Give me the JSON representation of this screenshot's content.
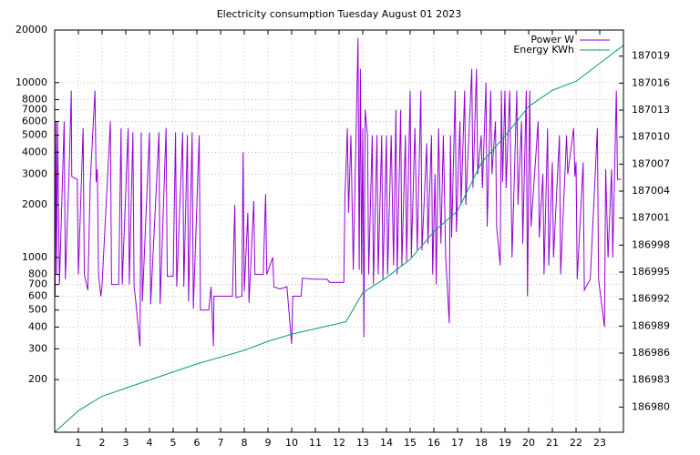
{
  "chart_data": {
    "type": "line",
    "title": "Electricity consumption Tuesday August 01 2023",
    "xlim": [
      0,
      24
    ],
    "xticks": [
      1,
      2,
      3,
      4,
      5,
      6,
      7,
      8,
      9,
      10,
      11,
      12,
      13,
      14,
      15,
      16,
      17,
      18,
      19,
      20,
      21,
      22,
      23
    ],
    "ylim": [
      100,
      20000
    ],
    "log_scale_y": true,
    "yticks": [
      200,
      300,
      400,
      500,
      600,
      700,
      800,
      1000,
      2000,
      3000,
      4000,
      5000,
      6000,
      7000,
      8000,
      10000,
      20000
    ],
    "y2lim": [
      186977.2,
      187021.9
    ],
    "y2ticks": [
      186980,
      186983,
      186986,
      186989,
      186992,
      186995,
      186998,
      187001,
      187004,
      187007,
      187010,
      187013,
      187016,
      187019
    ],
    "grid": true,
    "legend": "top-right",
    "series": [
      {
        "name": "Power W",
        "color": "#9400d3",
        "x": [
          0.0,
          0.02,
          0.05,
          0.08,
          0.12,
          0.2,
          0.4,
          0.45,
          0.6,
          0.7,
          0.72,
          0.95,
          1.0,
          1.2,
          1.25,
          1.4,
          1.5,
          1.7,
          1.75,
          1.8,
          1.85,
          1.95,
          2.0,
          2.35,
          2.4,
          2.7,
          2.8,
          2.85,
          3.1,
          3.15,
          3.3,
          3.35,
          3.4,
          3.6,
          3.65,
          3.7,
          4.0,
          4.05,
          4.4,
          4.45,
          4.7,
          4.75,
          5.0,
          5.1,
          5.15,
          5.4,
          5.45,
          5.6,
          5.65,
          5.8,
          5.85,
          6.1,
          6.15,
          6.5,
          6.6,
          6.7,
          6.72,
          7.5,
          7.6,
          7.65,
          7.9,
          7.95,
          8.0,
          8.15,
          8.2,
          8.4,
          8.45,
          8.8,
          8.9,
          8.95,
          9.2,
          9.25,
          9.5,
          9.8,
          10.0,
          10.05,
          10.4,
          10.45,
          11.0,
          11.5,
          11.6,
          12.2,
          12.25,
          12.3,
          12.35,
          12.4,
          12.5,
          12.6,
          12.8,
          12.85,
          12.9,
          12.95,
          13.0,
          13.05,
          13.1,
          13.2,
          13.25,
          13.4,
          13.45,
          13.6,
          13.65,
          13.8,
          13.85,
          14.0,
          14.05,
          14.2,
          14.3,
          14.4,
          14.45,
          14.6,
          14.65,
          14.8,
          14.85,
          15.0,
          15.05,
          15.2,
          15.3,
          15.45,
          15.5,
          15.7,
          15.75,
          15.9,
          15.95,
          16.05,
          16.1,
          16.2,
          16.3,
          16.4,
          16.5,
          16.65,
          16.7,
          16.75,
          16.9,
          16.95,
          17.1,
          17.15,
          17.3,
          17.35,
          17.6,
          17.65,
          17.8,
          17.85,
          18.0,
          18.05,
          18.2,
          18.25,
          18.4,
          18.45,
          18.6,
          18.65,
          18.8,
          18.85,
          18.9,
          19.0,
          19.05,
          19.2,
          19.3,
          19.5,
          19.55,
          19.7,
          19.75,
          19.9,
          19.95,
          20.0,
          20.05,
          20.1,
          20.4,
          20.45,
          20.6,
          20.65,
          20.8,
          20.85,
          21.0,
          21.05,
          21.3,
          21.35,
          21.6,
          21.65,
          21.9,
          21.95,
          22.0,
          22.05,
          22.3,
          22.35,
          22.6,
          22.9,
          22.95,
          23.2,
          23.25,
          23.35,
          23.5,
          23.55,
          23.7,
          23.75,
          23.9
        ],
        "values": [
          2200,
          600,
          6000,
          800,
          6000,
          700,
          6000,
          750,
          2800,
          9000,
          2900,
          2800,
          800,
          5500,
          800,
          650,
          2700,
          9000,
          2700,
          3200,
          800,
          600,
          700,
          6000,
          700,
          700,
          5500,
          700,
          5500,
          700,
          5200,
          680,
          600,
          310,
          5200,
          560,
          5200,
          540,
          5200,
          540,
          5500,
          780,
          780,
          5200,
          680,
          5200,
          680,
          5000,
          560,
          5200,
          510,
          5000,
          500,
          500,
          680,
          310,
          600,
          600,
          2000,
          590,
          600,
          4000,
          640,
          1800,
          550,
          2100,
          800,
          800,
          2300,
          800,
          1000,
          680,
          660,
          680,
          320,
          600,
          600,
          760,
          750,
          750,
          720,
          720,
          2300,
          3500,
          5500,
          1800,
          5000,
          850,
          18000,
          850,
          12000,
          800,
          5500,
          350,
          7000,
          5000,
          800,
          5000,
          700,
          5000,
          800,
          5000,
          750,
          5000,
          800,
          5000,
          900,
          7000,
          800,
          7000,
          900,
          5000,
          950,
          9000,
          1000,
          5500,
          1100,
          9000,
          1100,
          4500,
          1200,
          5000,
          800,
          3000,
          700,
          5500,
          1200,
          5000,
          1000,
          420,
          5000,
          1300,
          9000,
          1400,
          6000,
          2000,
          9000,
          2000,
          12000,
          2500,
          12000,
          3000,
          5000,
          2500,
          10000,
          1500,
          9000,
          3000,
          6000,
          1500,
          900,
          9000,
          2700,
          9000,
          2500,
          9000,
          1000,
          9000,
          2000,
          6000,
          1200,
          9000,
          600,
          2500,
          9000,
          1500,
          6000,
          1300,
          3000,
          800,
          5500,
          900,
          3500,
          1000,
          5000,
          800,
          5000,
          3000,
          5500,
          2900,
          3500,
          750,
          3500,
          650,
          750,
          5500,
          750,
          400,
          3200,
          1000,
          3200,
          1000,
          9000,
          2800,
          2800
        ]
      },
      {
        "name": "Energy KWh",
        "color": "#009e73",
        "axis": "y2",
        "x": [
          0,
          1,
          2,
          4,
          6,
          8,
          9,
          10,
          12,
          12.3,
          13,
          14,
          15,
          16,
          17,
          18,
          19,
          20,
          21,
          22,
          23,
          24
        ],
        "values": [
          186977.2,
          186979.6,
          186981.2,
          186983,
          186984.8,
          186986.3,
          186987.3,
          186988.1,
          186989.3,
          186989.5,
          186992.7,
          186994.4,
          186996.4,
          186999.5,
          187001.8,
          187007.1,
          187010.1,
          187013.4,
          187015.2,
          187016.2,
          187018.2,
          187020.2
        ]
      }
    ]
  }
}
